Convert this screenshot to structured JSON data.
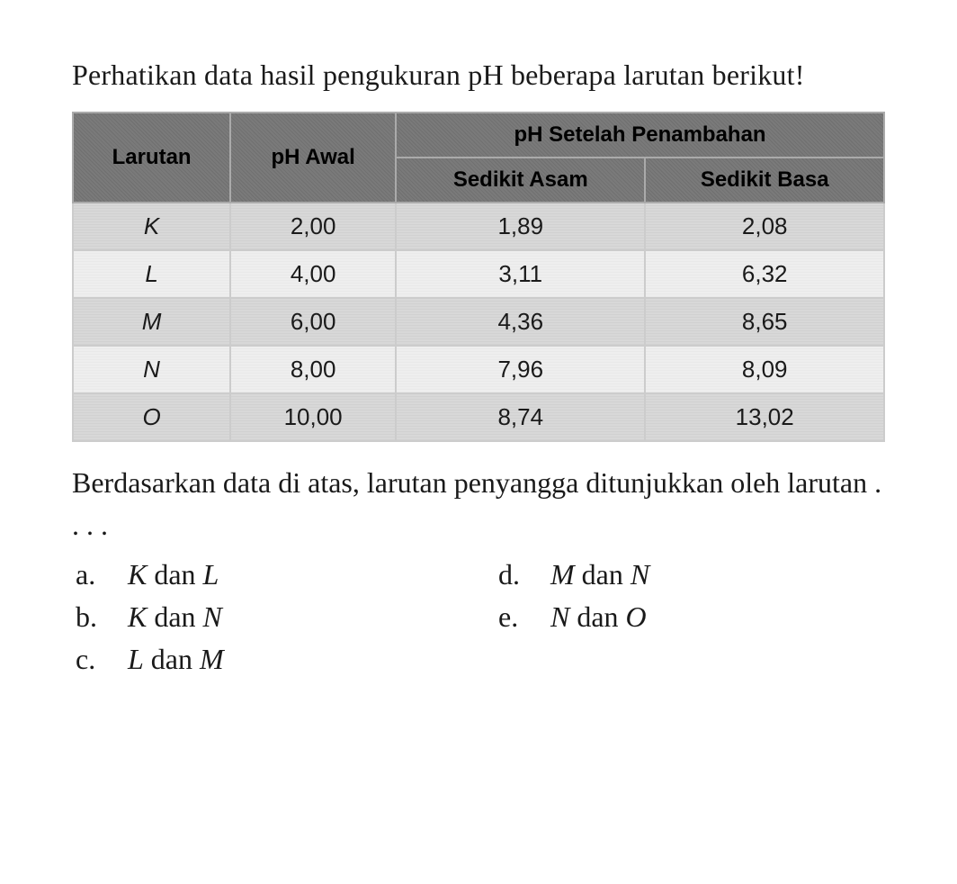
{
  "question": "Perhatikan data hasil pengukuran pH beberapa larutan berikut!",
  "table": {
    "headers": {
      "col1": "Larutan",
      "col2": "pH Awal",
      "group": "pH Setelah Penambahan",
      "sub1": "Sedikit Asam",
      "sub2": "Sedikit Basa"
    },
    "rows": [
      {
        "larutan": "K",
        "awal": "2,00",
        "asam": "1,89",
        "basa": "2,08"
      },
      {
        "larutan": "L",
        "awal": "4,00",
        "asam": "3,11",
        "basa": "6,32"
      },
      {
        "larutan": "M",
        "awal": "6,00",
        "asam": "4,36",
        "basa": "8,65"
      },
      {
        "larutan": "N",
        "awal": "8,00",
        "asam": "7,96",
        "basa": "8,09"
      },
      {
        "larutan": "O",
        "awal": "10,00",
        "asam": "8,74",
        "basa": "13,02"
      }
    ],
    "header_bg": "#7a7a7a",
    "row_odd_bg": "#d8d8d8",
    "row_even_bg": "#eeeeee",
    "border_color": "#cccccc",
    "header_fontsize": 24,
    "cell_fontsize": 26
  },
  "followup": "Berdasarkan data di atas, larutan penyangga ditunjukkan oleh larutan . . . .",
  "options": {
    "a": {
      "letter": "a.",
      "v1": "K",
      "conj": " dan ",
      "v2": "L"
    },
    "b": {
      "letter": "b.",
      "v1": "K",
      "conj": " dan ",
      "v2": "N"
    },
    "c": {
      "letter": "c.",
      "v1": "L",
      "conj": " dan ",
      "v2": "M"
    },
    "d": {
      "letter": "d.",
      "v1": "M",
      "conj": " dan ",
      "v2": "N"
    },
    "e": {
      "letter": "e.",
      "v1": "N",
      "conj": " dan ",
      "v2": "O"
    }
  },
  "body_fontsize": 32,
  "text_color": "#1a1a1a",
  "background_color": "#ffffff"
}
